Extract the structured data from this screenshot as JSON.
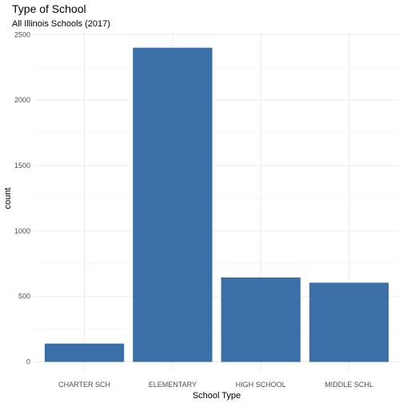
{
  "chart_data": {
    "type": "bar",
    "title": "Type of School",
    "subtitle": "All Illinois Schools (2017)",
    "xlabel": "School Type",
    "ylabel": "count",
    "categories": [
      "CHARTER SCH",
      "ELEMENTARY",
      "HIGH SCHOOL",
      "MIDDLE SCHL"
    ],
    "values": [
      140,
      2400,
      645,
      605
    ],
    "ylim": [
      0,
      2500
    ],
    "yticks": [
      0,
      500,
      1000,
      1500,
      2000,
      2500
    ],
    "grid": true,
    "bar_color": "#3a6fa8"
  }
}
